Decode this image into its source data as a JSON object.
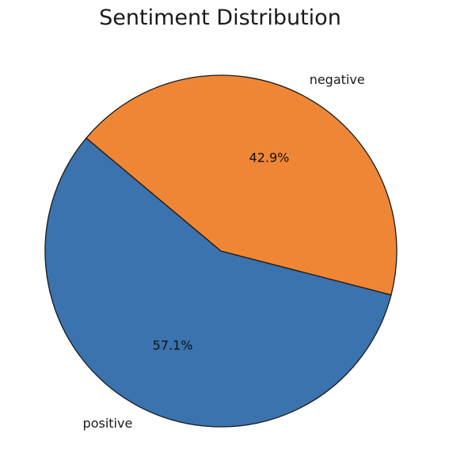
{
  "chart_data": {
    "type": "pie",
    "title": "Sentiment Distribution",
    "categories": [
      "positive",
      "negative"
    ],
    "values": [
      57.1,
      42.9
    ],
    "percent_labels": [
      "57.1%",
      "42.9%"
    ],
    "colors": [
      "#3a73ae",
      "#ef8636"
    ],
    "edge_color": "#1a1a1a",
    "start_angle_deg": 140,
    "direction": "counterclockwise",
    "legend": "none"
  }
}
